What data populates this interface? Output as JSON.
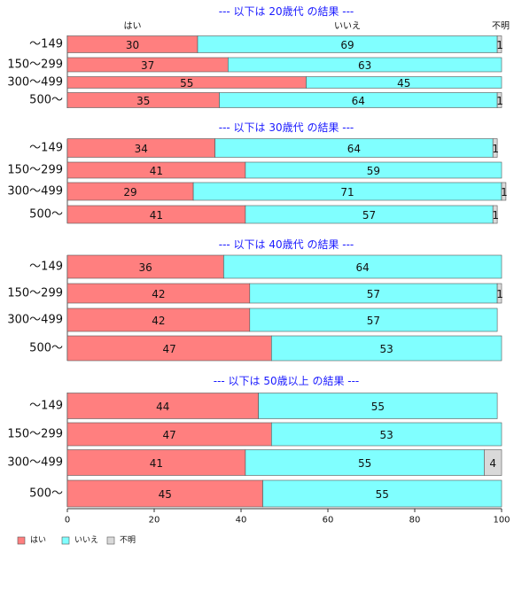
{
  "chart_data": {
    "type": "bar",
    "orientation": "horizontal",
    "stacked": true,
    "series_names": [
      "はい",
      "いいえ",
      "不明"
    ],
    "colors": [
      "#ff7f7f",
      "#80ffff",
      "#d9d9d9"
    ],
    "xlim": [
      0,
      100
    ],
    "x_ticks": [
      "0",
      "20",
      "40",
      "60",
      "80",
      "100"
    ],
    "groups": [
      {
        "title": "--- 以下は 20歳代 の結果 ---",
        "rows": [
          {
            "label": "～149",
            "values": [
              30,
              69,
              1
            ]
          },
          {
            "label": "150～299",
            "values": [
              37,
              63,
              0
            ]
          },
          {
            "label": "300～499",
            "values": [
              55,
              45,
              0
            ]
          },
          {
            "label": "500～",
            "values": [
              35,
              64,
              1
            ]
          }
        ]
      },
      {
        "title": "--- 以下は 30歳代 の結果 ---",
        "rows": [
          {
            "label": "～149",
            "values": [
              34,
              64,
              1
            ]
          },
          {
            "label": "150～299",
            "values": [
              41,
              59,
              0
            ]
          },
          {
            "label": "300～499",
            "values": [
              29,
              71,
              1
            ]
          },
          {
            "label": "500～",
            "values": [
              41,
              57,
              1
            ]
          }
        ]
      },
      {
        "title": "--- 以下は 40歳代 の結果 ---",
        "rows": [
          {
            "label": "～149",
            "values": [
              36,
              64,
              0
            ]
          },
          {
            "label": "150～299",
            "values": [
              42,
              57,
              1
            ]
          },
          {
            "label": "300～499",
            "values": [
              42,
              57,
              0
            ]
          },
          {
            "label": "500～",
            "values": [
              47,
              53,
              0
            ]
          }
        ]
      },
      {
        "title": "--- 以下は 50歳以上 の結果 ---",
        "rows": [
          {
            "label": "～149",
            "values": [
              44,
              55,
              0
            ]
          },
          {
            "label": "150～299",
            "values": [
              47,
              53,
              0
            ]
          },
          {
            "label": "300～499",
            "values": [
              41,
              55,
              4
            ]
          },
          {
            "label": "500～",
            "values": [
              45,
              55,
              0
            ]
          }
        ]
      }
    ],
    "legend_position": "bottom-left",
    "grid": false
  }
}
